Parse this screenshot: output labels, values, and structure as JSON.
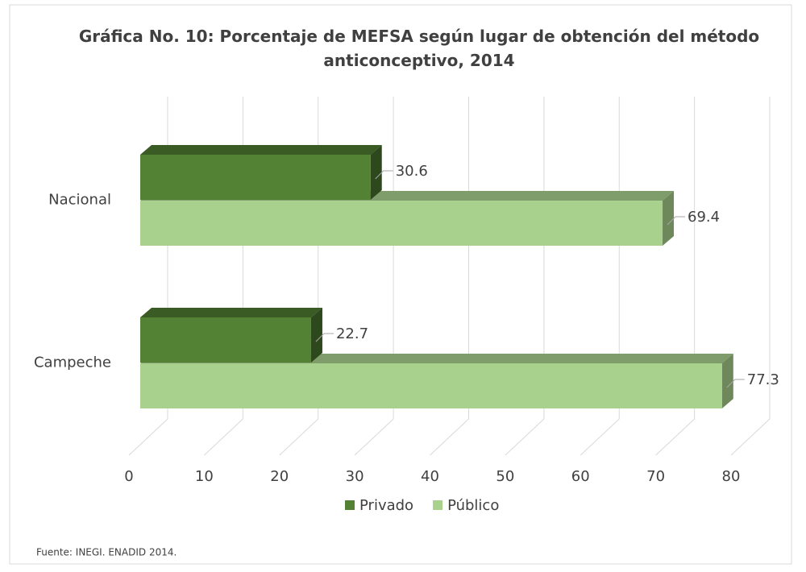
{
  "chart_data": {
    "type": "bar3d_horizontal",
    "title": "Gráfica No. 10: Porcentaje de MEFSA según lugar de obtención del método anticonceptivo, 2014",
    "categories": [
      "Nacional",
      "Campeche"
    ],
    "series": [
      {
        "name": "Privado",
        "color": "#548235",
        "values": [
          30.6,
          22.7
        ]
      },
      {
        "name": "Público",
        "color": "#a9d18e",
        "values": [
          69.4,
          77.3
        ]
      }
    ],
    "xlim": [
      0,
      80
    ],
    "xticks": [
      0,
      10,
      20,
      30,
      40,
      50,
      60,
      70,
      80
    ],
    "grid": true,
    "legend": "bottom",
    "source": "Fuente: INEGI. ENADID 2014."
  }
}
